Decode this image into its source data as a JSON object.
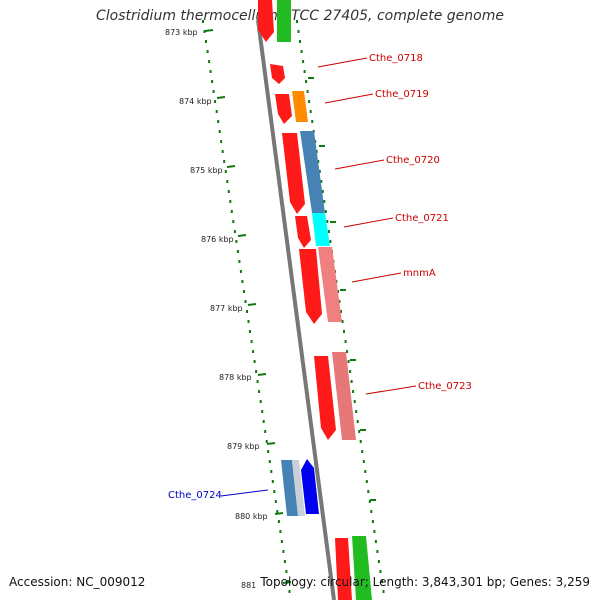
{
  "title": "Clostridium thermocellum ATCC 27405, complete genome",
  "accession": "Accession: NC_009012",
  "summary": "Topology: circular; Length: 3,843,301 bp; Genes: 3,259",
  "ticks": [
    "873 kbp",
    "874 kbp",
    "875 kbp",
    "876 kbp",
    "877 kbp",
    "878 kbp",
    "879 kbp",
    "880 kbp",
    "881"
  ],
  "gene_labels": [
    {
      "name": "Cthe_0718",
      "color": "#cc0000"
    },
    {
      "name": "Cthe_0719",
      "color": "#cc0000"
    },
    {
      "name": "Cthe_0720",
      "color": "#cc0000"
    },
    {
      "name": "Cthe_0721",
      "color": "#cc0000"
    },
    {
      "name": "mnmA",
      "color": "#cc0000"
    },
    {
      "name": "Cthe_0723",
      "color": "#cc0000"
    },
    {
      "name": "Cthe_0724",
      "color": "#0000cc"
    }
  ],
  "colors": {
    "backbone": "#777777",
    "tick": "#117711",
    "red": "#ff1a1a",
    "orange": "#ff8c00",
    "steelblue": "#4682b4",
    "cyan": "#00ffff",
    "salmon": "#f08080",
    "blue": "#0000ee",
    "green": "#22bb22"
  }
}
